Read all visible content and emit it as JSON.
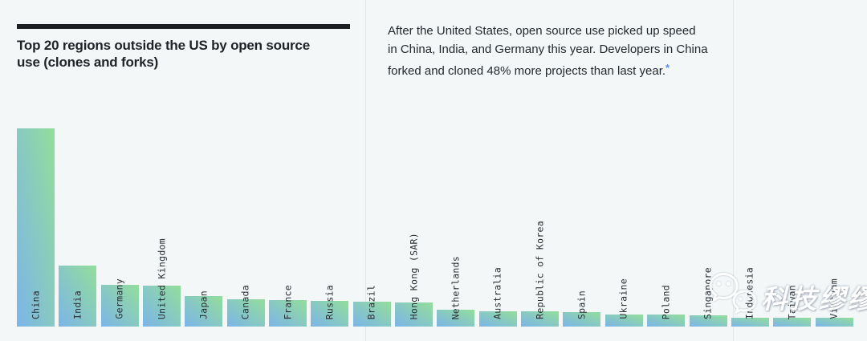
{
  "header": {
    "title_lines": [
      "Top 20 regions outside the US by open source",
      "use (clones and forks)"
    ]
  },
  "description": {
    "lines": [
      "After the United States, open source use picked up speed",
      "in China, India, and Germany this year. Developers in China",
      "forked and cloned 48% more projects than last year."
    ],
    "footnote_marker": "*"
  },
  "chart_data": {
    "type": "bar",
    "title": "Top 20 regions outside the US by open source use (clones and forks)",
    "categories": [
      "China",
      "India",
      "Germany",
      "United Kingdom",
      "Japan",
      "Canada",
      "France",
      "Russia",
      "Brazil",
      "Hong Kong (SAR)",
      "Netherlands",
      "Australia",
      "Republic of Korea",
      "Spain",
      "Ukraine",
      "Poland",
      "Singapore",
      "Indonesia",
      "Taiwan",
      "Vietnam"
    ],
    "values": [
      247,
      76,
      52,
      51,
      38,
      34,
      33,
      32,
      31,
      30,
      21,
      19,
      19,
      18,
      15,
      15,
      14,
      11,
      11,
      11
    ],
    "value_unit": "relative-bar-height-px",
    "xlabel": "",
    "ylabel": "",
    "axes_shown": false,
    "grid": false,
    "legend": false,
    "bar_gradient": [
      "#7cb5e8",
      "#93de9b"
    ],
    "label_placement": "vertical-rotated-anchored-at-bar-bottom"
  },
  "watermark": {
    "text": "科技缪缪",
    "icon": "wechat-icon"
  },
  "colors": {
    "background": "#f3f7f8",
    "divider": "#e3e7ea",
    "title_text": "#1f2328",
    "title_rule": "#1c2025",
    "body_text": "#24292e",
    "footnote": "#5b8ff2",
    "bar_label": "#2b3036",
    "bar_gradient_bottom_left": "#7cb5e8",
    "bar_gradient_top_right": "#93de9b"
  }
}
